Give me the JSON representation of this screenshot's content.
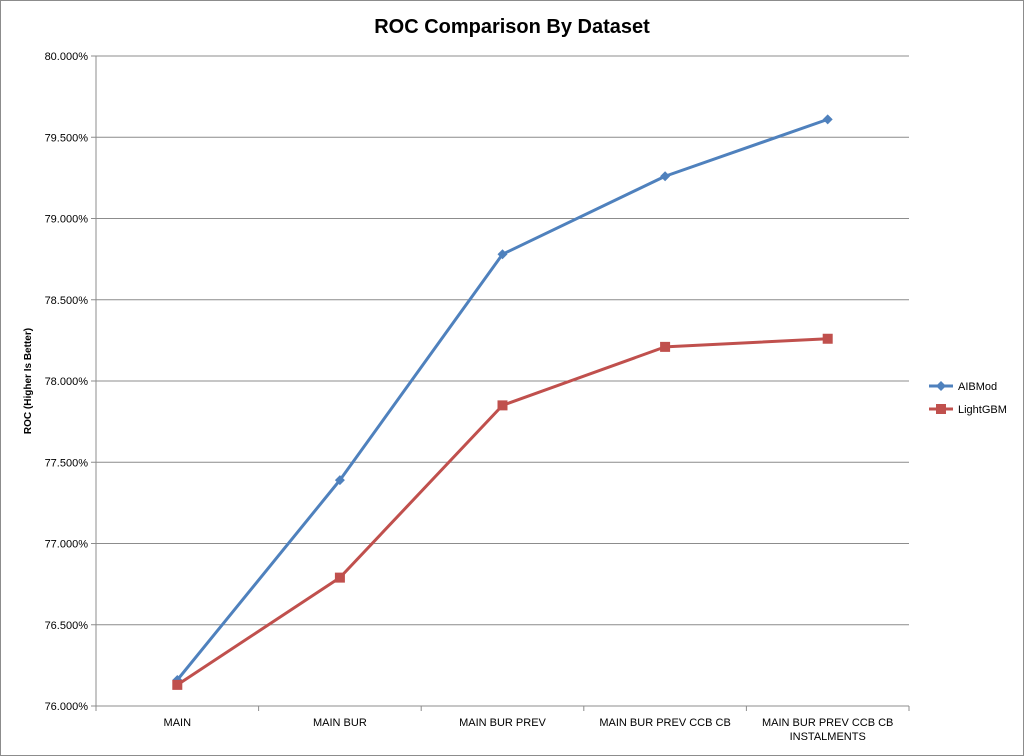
{
  "chart_data": {
    "type": "line",
    "title": "ROC Comparison By Dataset",
    "xlabel": "",
    "ylabel": "ROC (Higher Is Better)",
    "categories": [
      [
        "MAIN"
      ],
      [
        "MAIN BUR"
      ],
      [
        "MAIN BUR PREV"
      ],
      [
        "MAIN BUR PREV CCB CB"
      ],
      [
        "MAIN BUR PREV CCB CB",
        "INSTALMENTS"
      ]
    ],
    "ylim": [
      76.0,
      80.0
    ],
    "yticks": [
      76.0,
      76.5,
      77.0,
      77.5,
      78.0,
      78.5,
      79.0,
      79.5,
      80.0
    ],
    "ytick_labels": [
      "76.000%",
      "76.500%",
      "77.000%",
      "77.500%",
      "78.000%",
      "78.500%",
      "79.000%",
      "79.500%",
      "80.000%"
    ],
    "grid": true,
    "legend_position": "right",
    "series": [
      {
        "name": "AIBMod",
        "color": "#4f81bd",
        "marker": "diamond",
        "values": [
          76.16,
          77.39,
          78.78,
          79.26,
          79.61
        ]
      },
      {
        "name": "LightGBM",
        "color": "#c0504d",
        "marker": "square",
        "values": [
          76.13,
          76.79,
          77.85,
          78.21,
          78.26
        ]
      }
    ]
  }
}
